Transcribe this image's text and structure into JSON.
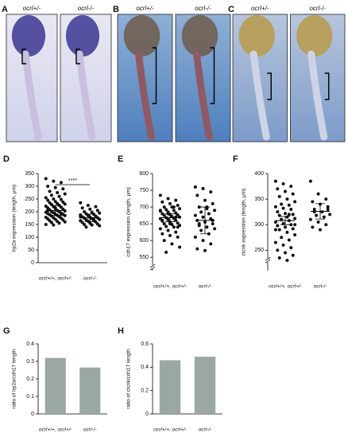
{
  "photo_panels": [
    {
      "label": "A",
      "images": [
        {
          "genotype": "ocrl+/-"
        },
        {
          "genotype": "ocrl-/-"
        }
      ]
    },
    {
      "label": "B",
      "images": [
        {
          "genotype": "ocrl+/-"
        },
        {
          "genotype": "ocrl-/-"
        }
      ]
    },
    {
      "label": "C",
      "images": [
        {
          "genotype": "ocrl+/-"
        },
        {
          "genotype": "ocrl-/-"
        }
      ]
    }
  ],
  "chart_data": [
    {
      "type": "strip",
      "panel": "D",
      "ylabel": "lrp2a expression (length, μm)",
      "annotation": "****",
      "ylim": [
        0,
        350
      ],
      "yticks": [
        0,
        50,
        100,
        150,
        200,
        250,
        300,
        350
      ],
      "color": "#111111",
      "categories": [
        "ocrl+/+, ocrl+/-",
        "ocrl-/-"
      ],
      "groups": [
        {
          "values": [
            330,
            320,
            315,
            300,
            295,
            290,
            280,
            275,
            270,
            265,
            260,
            255,
            250,
            248,
            245,
            240,
            238,
            235,
            232,
            230,
            228,
            225,
            222,
            220,
            218,
            215,
            213,
            210,
            208,
            205,
            203,
            200,
            200,
            198,
            196,
            195,
            193,
            190,
            190,
            188,
            186,
            185,
            183,
            180,
            178,
            176,
            175,
            172,
            170,
            168,
            165,
            162,
            160,
            158,
            155,
            150,
            148,
            190,
            205,
            215
          ],
          "mean": 205,
          "error": 20
        },
        {
          "values": [
            235,
            225,
            220,
            215,
            210,
            205,
            200,
            198,
            195,
            192,
            190,
            188,
            185,
            183,
            180,
            178,
            176,
            175,
            173,
            170,
            168,
            166,
            165,
            163,
            160,
            158,
            155,
            152,
            150,
            148,
            145,
            140,
            170,
            180,
            185
          ],
          "mean": 176,
          "error": 15
        }
      ]
    },
    {
      "type": "strip",
      "panel": "E",
      "ylabel": "cdh17 expression (length, μm)",
      "axis_break": true,
      "ylim": [
        510,
        800
      ],
      "yticks": [
        550,
        600,
        650,
        700,
        750,
        800
      ],
      "color": "#111111",
      "categories": [
        "ocrl+/+, ocrl+/-",
        "ocrl-/-"
      ],
      "groups": [
        {
          "values": [
            735,
            725,
            720,
            715,
            710,
            705,
            700,
            700,
            695,
            692,
            690,
            688,
            685,
            682,
            680,
            678,
            676,
            675,
            672,
            670,
            668,
            666,
            665,
            662,
            660,
            658,
            655,
            652,
            650,
            648,
            645,
            642,
            640,
            635,
            630,
            625,
            620,
            615,
            610,
            600,
            590,
            580,
            565,
            700,
            690,
            680,
            670,
            660,
            650,
            640
          ],
          "mean": 668,
          "error": 12
        },
        {
          "values": [
            760,
            755,
            745,
            735,
            720,
            710,
            700,
            695,
            690,
            685,
            680,
            675,
            670,
            665,
            660,
            655,
            650,
            645,
            640,
            635,
            630,
            620,
            610,
            600,
            590,
            575,
            570,
            660,
            650,
            700
          ],
          "mean": 660,
          "error": 40
        }
      ]
    },
    {
      "type": "strip",
      "panel": "F",
      "ylabel": "clcnk expression (length, μm)",
      "axis_break": true,
      "ylim": [
        210,
        400
      ],
      "yticks": [
        250,
        300,
        350,
        400
      ],
      "color": "#111111",
      "categories": [
        "ocrl+/+, ocrl+/-",
        "ocrl-/-"
      ],
      "groups": [
        {
          "values": [
            385,
            380,
            375,
            370,
            365,
            360,
            355,
            350,
            345,
            340,
            338,
            335,
            332,
            330,
            325,
            322,
            320,
            318,
            315,
            312,
            310,
            308,
            305,
            302,
            300,
            298,
            295,
            292,
            290,
            285,
            280,
            275,
            270,
            265,
            260,
            255,
            250,
            245,
            240,
            235,
            230,
            300,
            310,
            320,
            290
          ],
          "mean": 308,
          "error": 8
        },
        {
          "values": [
            385,
            360,
            350,
            345,
            340,
            335,
            330,
            325,
            320,
            318,
            315,
            310,
            305,
            300,
            295,
            290,
            330,
            325
          ],
          "mean": 326,
          "error": 15
        }
      ]
    },
    {
      "type": "bar",
      "panel": "G",
      "ylabel": "ratio of lrp2a/cdh17 length",
      "ylim": [
        0,
        0.4
      ],
      "yticks": [
        0,
        0.1,
        0.2,
        0.3,
        0.4
      ],
      "color": "#9aa7a3",
      "categories": [
        "ocrl+/+, ocrl+/-",
        "ocrl-/-"
      ],
      "values": [
        0.32,
        0.265
      ]
    },
    {
      "type": "bar",
      "panel": "H",
      "ylabel": "ratio of clcnk/cdh17 length",
      "ylim": [
        0,
        0.6
      ],
      "yticks": [
        0,
        0.2,
        0.4,
        0.6
      ],
      "color": "#9aa7a3",
      "categories": [
        "ocrl+/+, ocrl+/-",
        "ocrl-/-"
      ],
      "values": [
        0.46,
        0.49
      ]
    }
  ]
}
